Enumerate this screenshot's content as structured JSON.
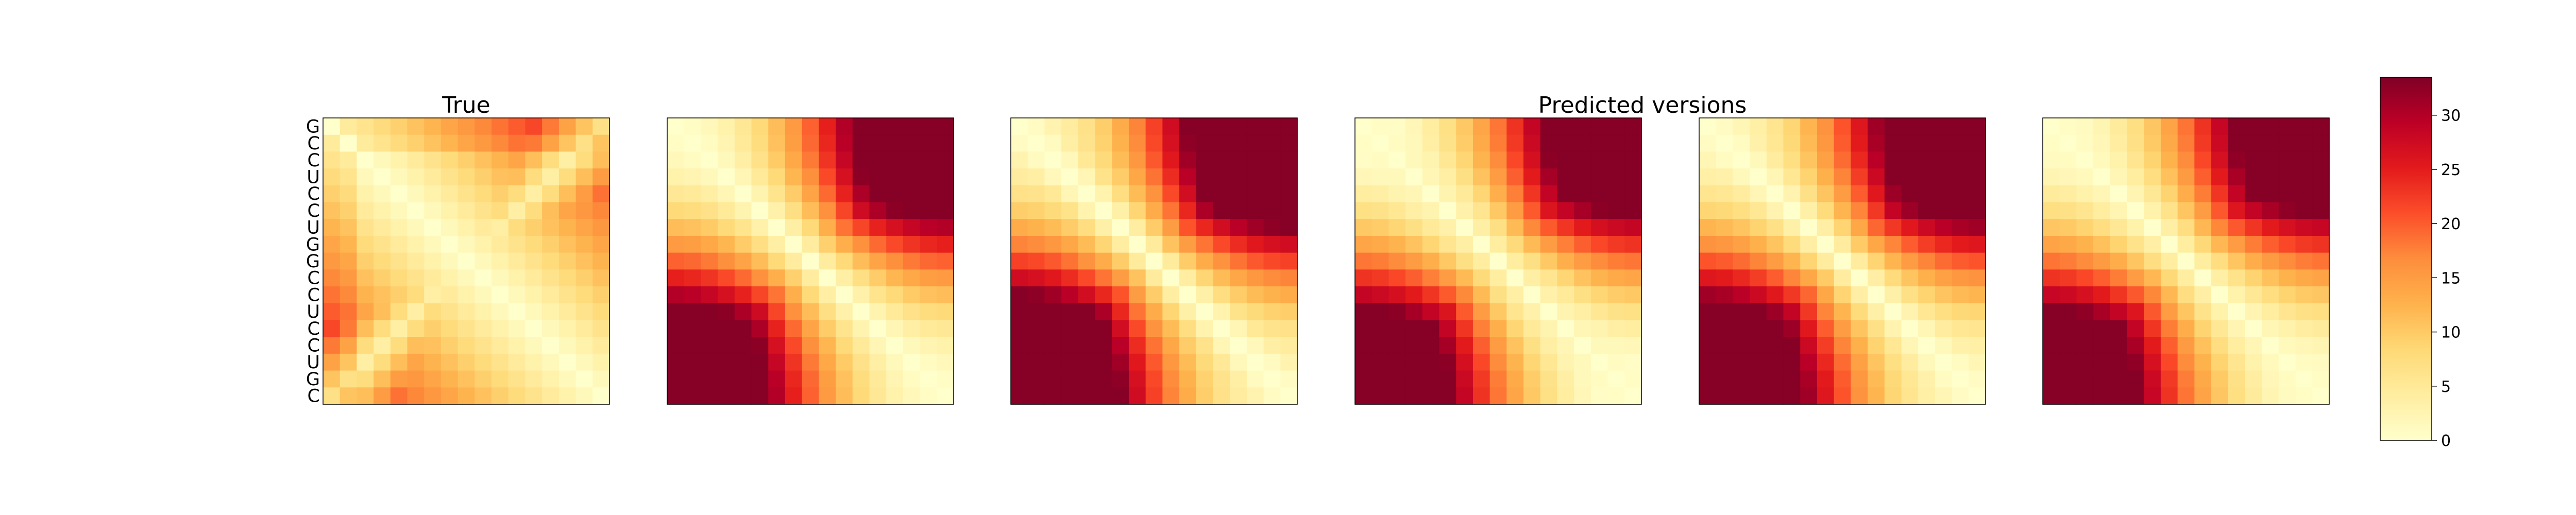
{
  "chart_data": {
    "type": "heatmap",
    "sequence": [
      "G",
      "C",
      "C",
      "U",
      "C",
      "C",
      "U",
      "G",
      "G",
      "C",
      "C",
      "U",
      "C",
      "C",
      "U",
      "G",
      "C"
    ],
    "panels": [
      {
        "title": "True"
      },
      {
        "title": ""
      },
      {
        "title": ""
      },
      {
        "title": "Predicted versions"
      },
      {
        "title": ""
      },
      {
        "title": ""
      }
    ],
    "colorbar": {
      "min": 0,
      "max": 33.5,
      "ticks": [
        0,
        5,
        10,
        15,
        20,
        25,
        30
      ]
    },
    "colormap": [
      "#ffffcc",
      "#ffeda0",
      "#fed976",
      "#feb24c",
      "#fd8d3c",
      "#fc4e2a",
      "#e31a1c",
      "#bd0026",
      "#800026"
    ],
    "grid": false
  }
}
